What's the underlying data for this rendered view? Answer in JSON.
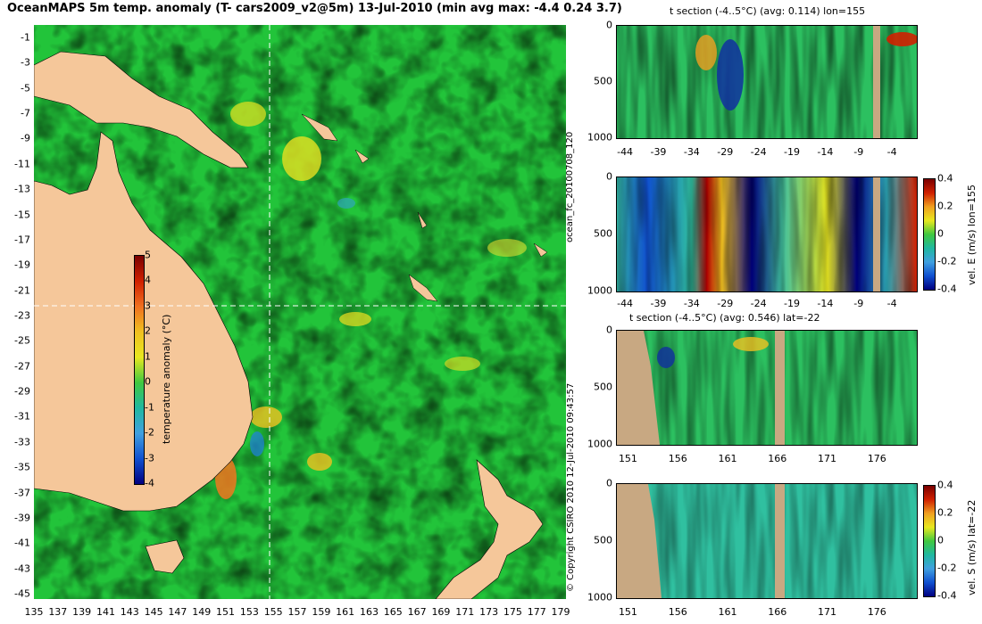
{
  "map": {
    "title": "OceanMAPS 5m temp. anomaly (T- cars2009_v2@5m) 13-Jul-2010 (min avg max: -4.4 0.24 3.7)",
    "lat_ticks": [
      "-1",
      "-3",
      "-5",
      "-7",
      "-9",
      "-11",
      "-13",
      "-15",
      "-17",
      "-19",
      "-21",
      "-23",
      "-25",
      "-27",
      "-29",
      "-31",
      "-33",
      "-35",
      "-37",
      "-39",
      "-41",
      "-43",
      "-45"
    ],
    "lon_ticks": [
      "135",
      "137",
      "139",
      "141",
      "143",
      "145",
      "147",
      "149",
      "151",
      "153",
      "155",
      "157",
      "159",
      "161",
      "163",
      "165",
      "167",
      "169",
      "171",
      "173",
      "175",
      "177",
      "179"
    ],
    "crosshair": {
      "lon": 155,
      "lat": -22
    },
    "colorbar": {
      "label": "temperature anomaly (°C)",
      "ticks": [
        "5",
        "4",
        "3",
        "2",
        "1",
        "0",
        "-1",
        "-2",
        "-3",
        "-4"
      ],
      "range": [
        -4,
        5
      ]
    },
    "side_text": "© Copyright CSIRO 2010  12-Jul-2010 09:43:57",
    "run_id": "ocean_fc_20100708_120"
  },
  "panels": {
    "p1": {
      "title": "t section (-4..5°C) (avg: 0.114) lon=155",
      "x_ticks": [
        "-44",
        "-39",
        "-34",
        "-29",
        "-24",
        "-19",
        "-14",
        "-9",
        "-4"
      ],
      "y_ticks": [
        "0",
        "500",
        "1000"
      ]
    },
    "p2": {
      "title": "",
      "x_ticks": [
        "-44",
        "-39",
        "-34",
        "-29",
        "-24",
        "-19",
        "-14",
        "-9",
        "-4"
      ],
      "y_ticks": [
        "0",
        "500",
        "1000"
      ],
      "cb_ticks": [
        "0.4",
        "0.2",
        "0",
        "-0.2",
        "-0.4"
      ],
      "cb_label": "vel. E (m/s) lon=155"
    },
    "p3": {
      "title": "t section (-4..5°C) (avg: 0.546) lat=-22",
      "x_ticks": [
        "151",
        "156",
        "161",
        "166",
        "171",
        "176"
      ],
      "y_ticks": [
        "0",
        "500",
        "1000"
      ]
    },
    "p4": {
      "title": "",
      "x_ticks": [
        "151",
        "156",
        "161",
        "166",
        "171",
        "176"
      ],
      "y_ticks": [
        "0",
        "500",
        "1000"
      ],
      "cb_ticks": [
        "0.4",
        "0.2",
        "0",
        "-0.2",
        "-0.4"
      ],
      "cb_label": "vel. S (m/s) lat=-22"
    }
  },
  "colors": {
    "ocean": "#22c43a",
    "land": "#f5c79a",
    "section_land": "#c8a882",
    "pos": "#f0d020",
    "neg": "#1e6ee0"
  }
}
